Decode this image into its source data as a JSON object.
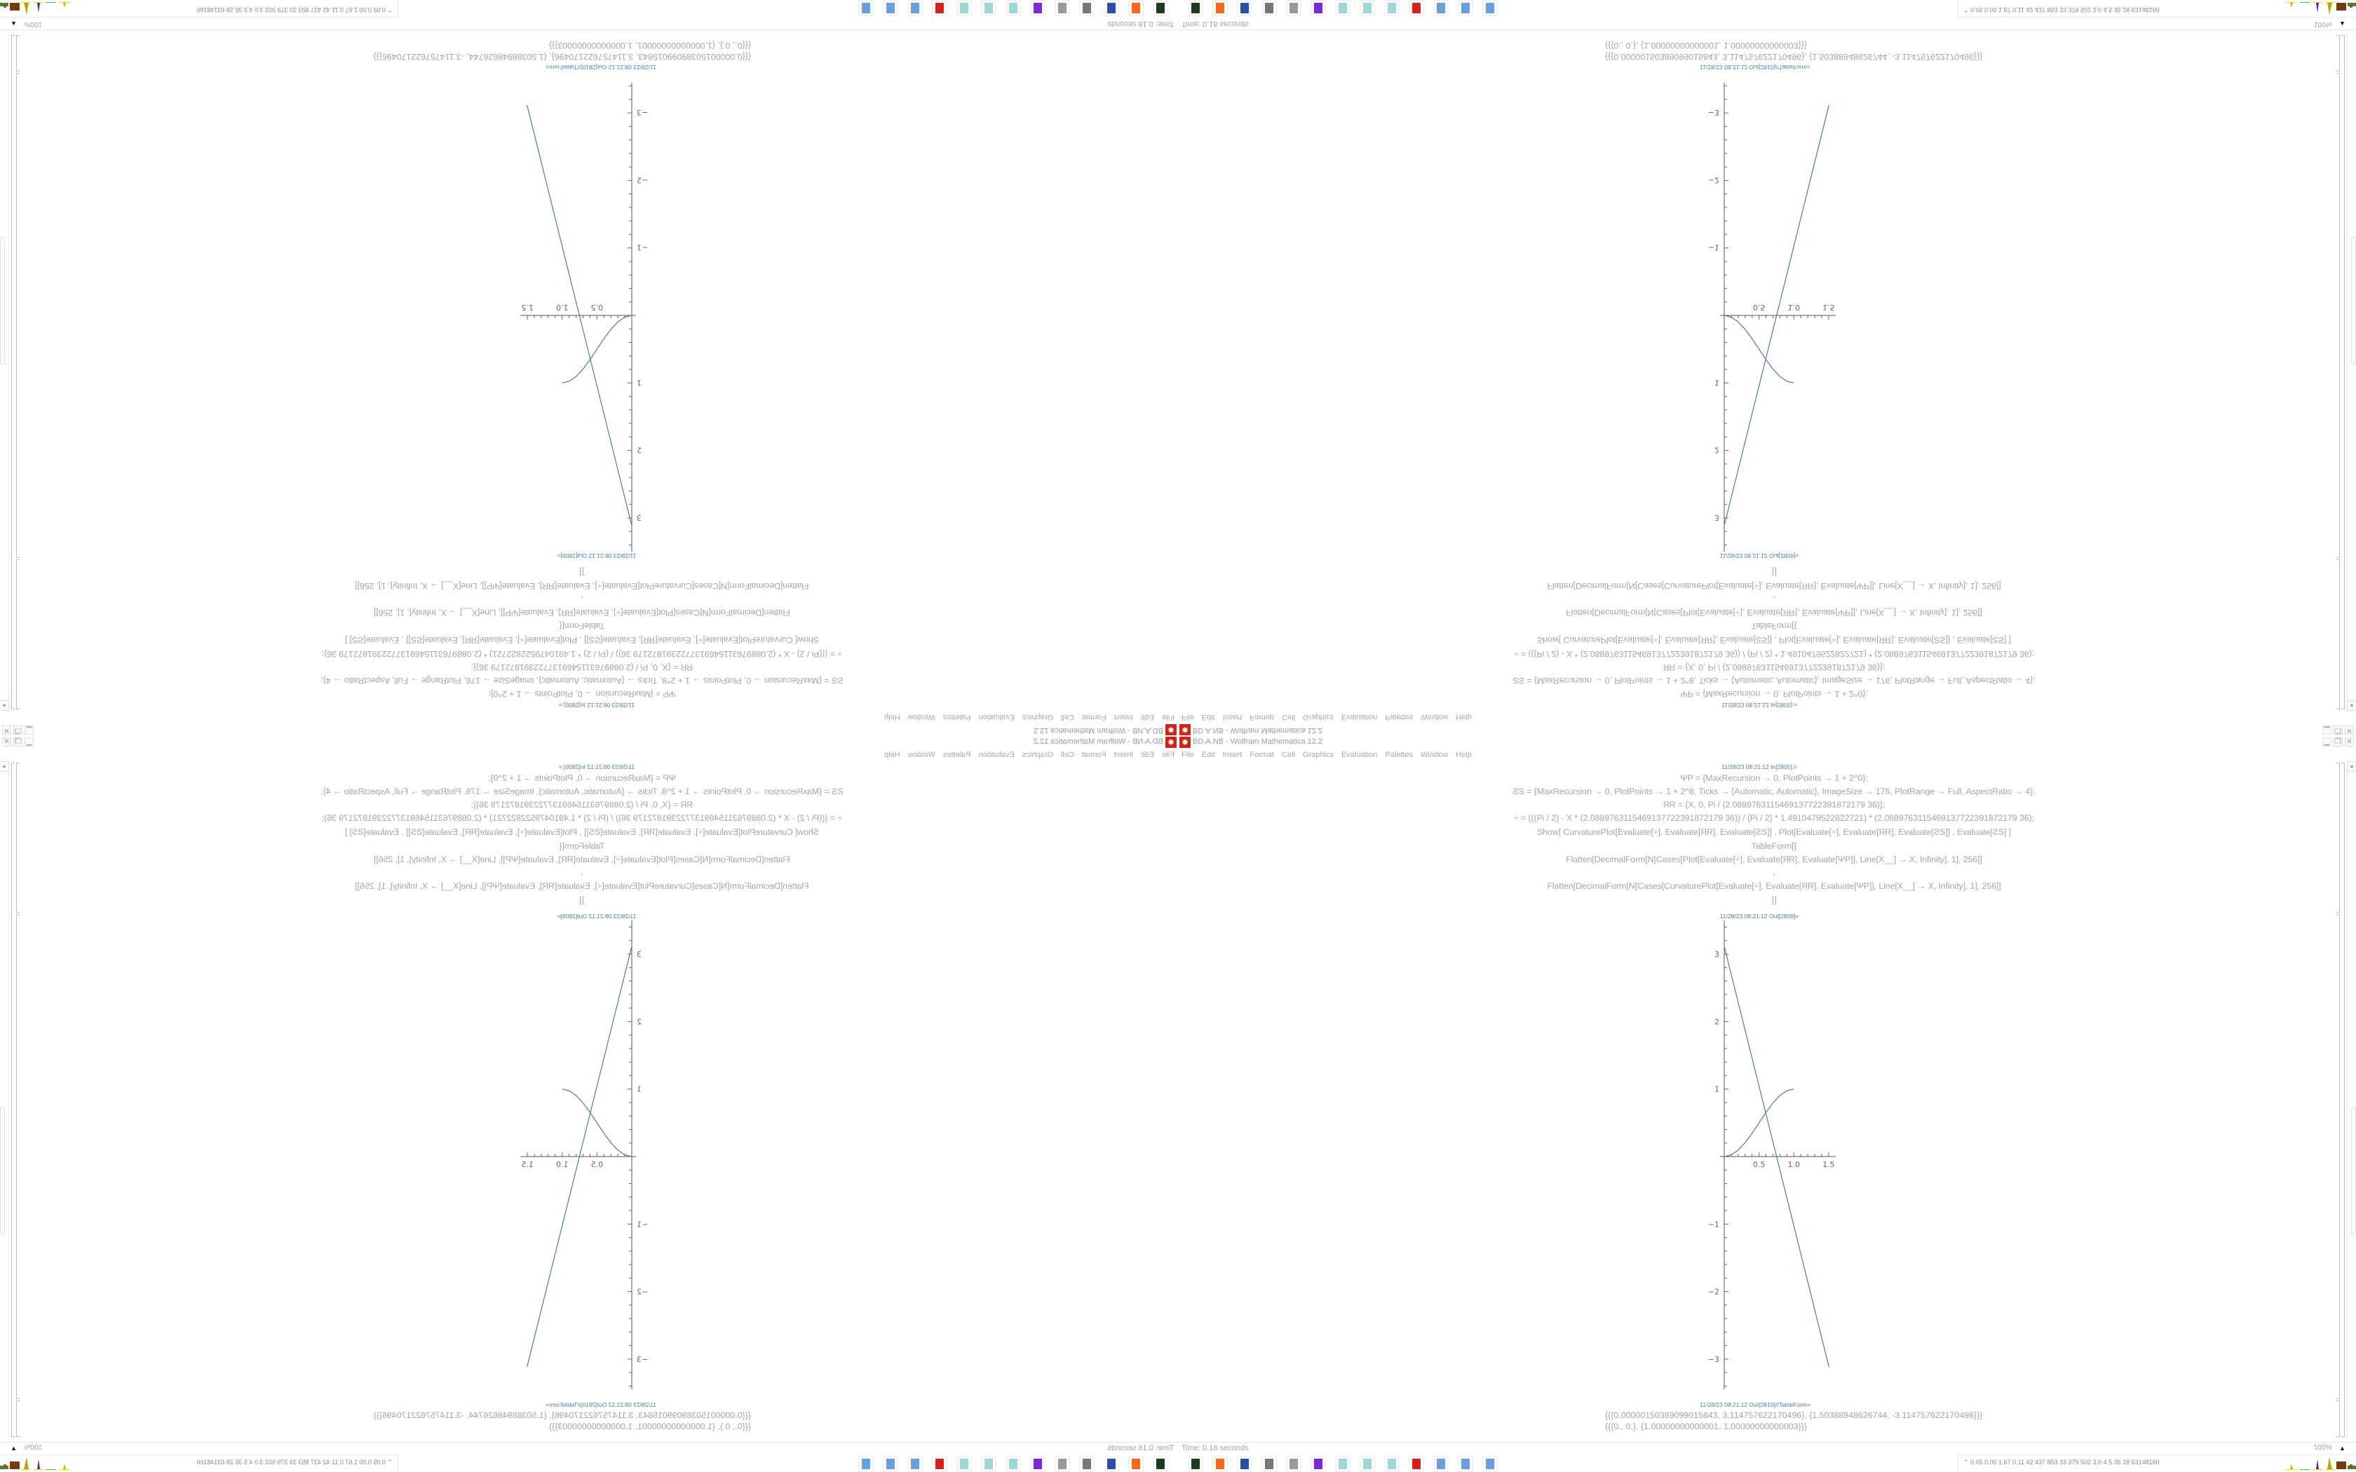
{
  "window": {
    "title": "BD.A.NB - Wolfram Mathematica 12.2",
    "controls": {
      "minimize": "▁",
      "restore": "❐",
      "close": "✕"
    }
  },
  "menu": [
    "File",
    "Edit",
    "Insert",
    "Format",
    "Cell",
    "Graphics",
    "Evaluation",
    "Palettes",
    "Window",
    "Help"
  ],
  "notebook": {
    "input_label": "11/28/23 08:21:12 In[2805]:=",
    "input_lines": [
      "ΨP = {MaxRecursion → 0, PlotPoints → 1 + 2^0};",
      "ƧS = {MaxRecursion → 0, PlotPoints → 1 + 2^8, Ticks → {Automatic, Automatic}, ImageSize → 176, PlotRange → Full, AspectRatio → 4};",
      "ЯR = {X, 0, Pi / (2.0889763115469137722391872179 36)};",
      "÷ = (((Pi / 2) - X * (2.0889763115469137722391872179 36)) / (Pi / 2) * 1.4910479522822721) * (2.0889763115469137722391872179 36);",
      "Show[   CurvaturePlot[Evaluate[÷], Evaluate[ЯR], Evaluate[ƧS]]   ,    Plot[Evaluate[÷], Evaluate[ЯR], Evaluate[ƧS]]   ,    Evaluate[ƧS]   ]",
      "TableForm[{",
      "Flatten[DecimalForm[N[Cases[Plot[Evaluate[÷], Evaluate[ЯR], Evaluate[ΨP]], Line[X__] → X, Infinity], 1], 256]]",
      ",",
      "Flatten[DecimalForm[N[Cases[CurvaturePlot[Evaluate[÷], Evaluate[ЯR], Evaluate[ΨP]], Line[X__] → X, Infinity], 1], 256]]",
      "}]"
    ],
    "output1_label": "11/28/23 08:21:12 Out[2809]=",
    "output2_label": "11/28/23 08:21:12 Out[2810]//TableForm=",
    "output2_rows": [
      "{{{0.00000150389099015843, 3.114757622170496}, {1.50388948626744, -3.114757622170496}}}",
      "{{{0., 0.}, {1.00000000000001, 1.00000000000003}}}"
    ]
  },
  "chart_data": {
    "type": "line",
    "title": "",
    "xlabel": "",
    "ylabel": "",
    "xlim": [
      0,
      1.6
    ],
    "ylim": [
      -3.45,
      3.5
    ],
    "x_ticks": [
      "0.5",
      "1.0",
      "1.5"
    ],
    "y_ticks": [
      "-3",
      "-2",
      "-1",
      "1",
      "2",
      "3"
    ],
    "grid": false,
    "series": [
      {
        "points": [
          [
            1.5e-06,
            3.1148
          ],
          [
            1.5039,
            -3.1148
          ]
        ],
        "color": "#5e81a8"
      },
      {
        "points": [
          [
            0,
            0
          ],
          [
            0.1,
            0.024
          ],
          [
            0.2,
            0.095
          ],
          [
            0.3,
            0.206
          ],
          [
            0.4,
            0.345
          ],
          [
            0.5,
            0.5
          ],
          [
            0.6,
            0.655
          ],
          [
            0.7,
            0.794
          ],
          [
            0.8,
            0.905
          ],
          [
            0.9,
            0.976
          ],
          [
            1.0,
            1.0
          ]
        ],
        "color": "#5e81a8"
      }
    ]
  },
  "status": {
    "time": "Time: 0.16 seconds",
    "zoom": "100%",
    "zoom_arrow": "▲"
  },
  "taskbar": {
    "icons": [
      "terminal-icon",
      "firefox-icon",
      "floppy-icon",
      "monitor-icon",
      "speaker-icon",
      "owl-icon",
      "notepad-icon",
      "notepad-icon",
      "notepad-icon",
      "mathematica-icon",
      "calculator-icon",
      "calculator-icon",
      "calculator-icon"
    ],
    "icon_colors": [
      "#1d3b1d",
      "#f06a1d",
      "#2a4fa8",
      "#777777",
      "#999999",
      "#7a2ad0",
      "#9fd6d6",
      "#9fd6d6",
      "#9fd6d6",
      "#d1231c",
      "#6aa0d8",
      "#6aa0d8",
      "#6aa0d8"
    ],
    "tray_chevron": "⌃",
    "tray_stats": "0.05 0.00 1.67 0.11  42  437  853  33  379  502  3.0  4.5  35  28  63148160"
  }
}
